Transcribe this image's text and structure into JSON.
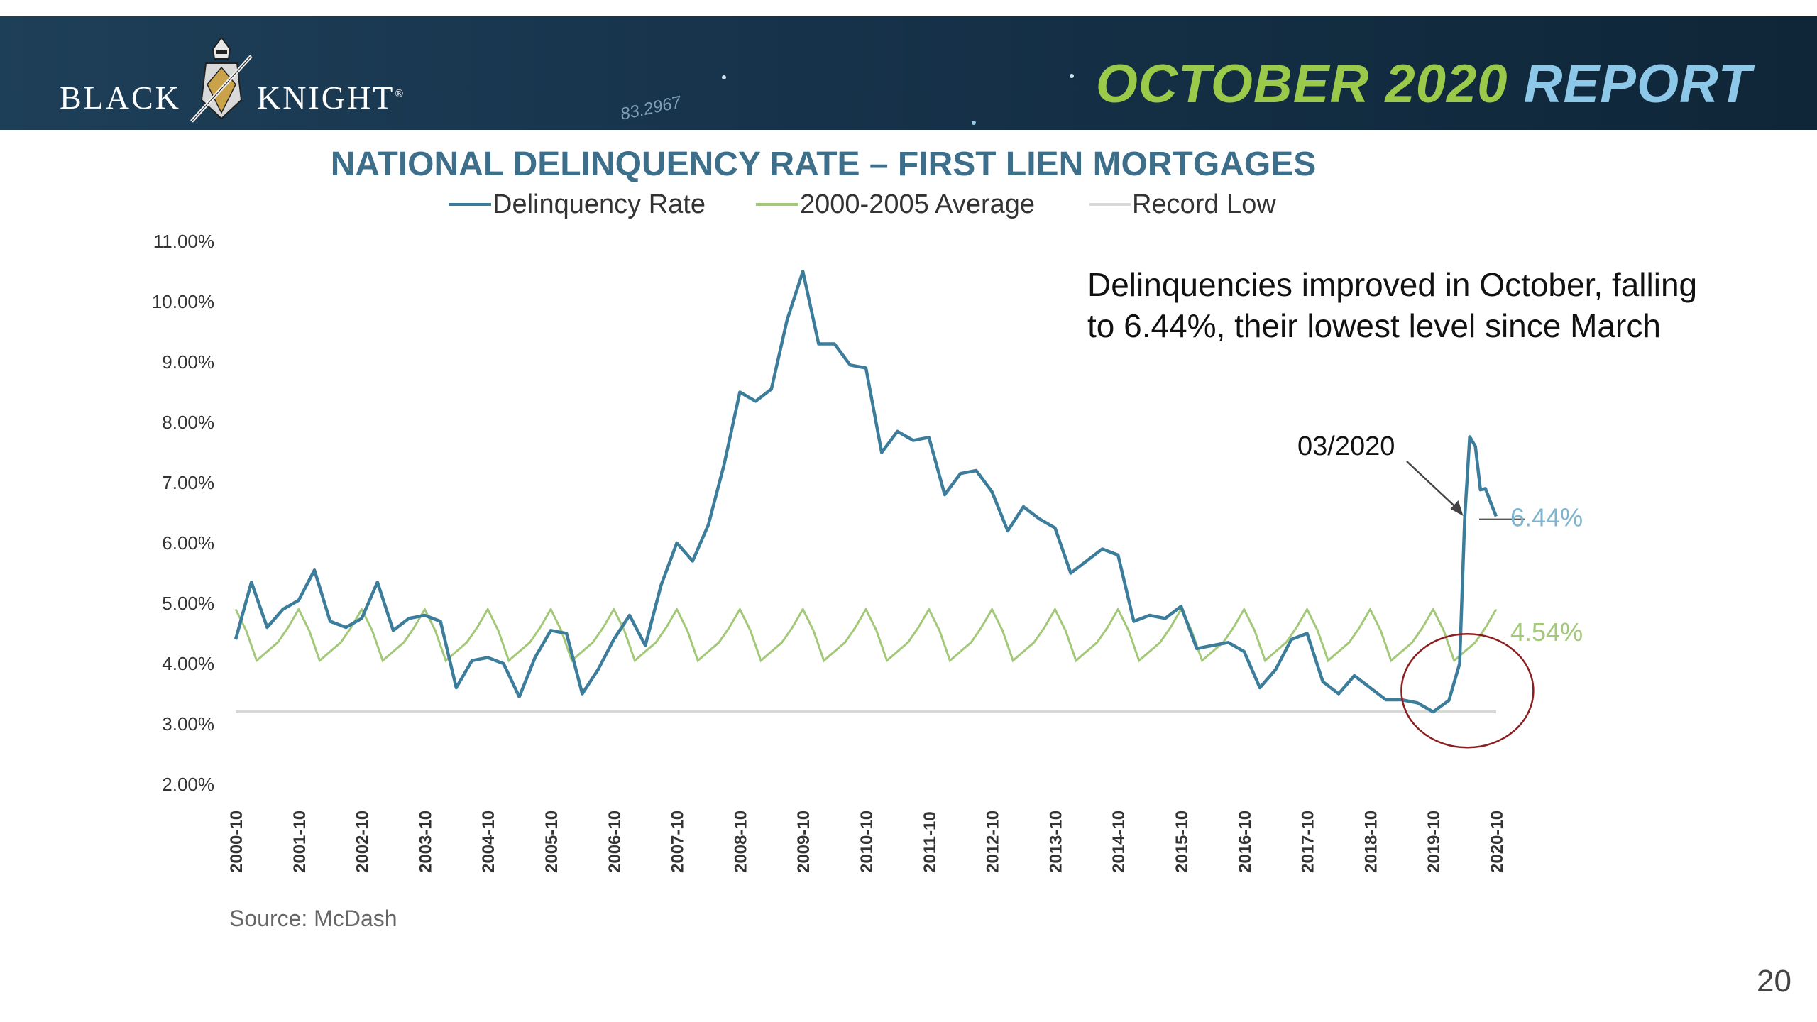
{
  "header": {
    "logo_left": "BLACK",
    "logo_right": "KNIGHT",
    "logo_trademark": "®",
    "report_month": "OCTOBER 2020",
    "report_word": "REPORT",
    "decor_number": "83.2967",
    "colors": {
      "bar": "#16324a",
      "month": "#9bc94a",
      "report": "#8ec8e8"
    }
  },
  "callout": {
    "text": "Delinquencies improved in October, falling to 6.44%, their lowest level since March"
  },
  "page_number": "20",
  "chart_data": {
    "type": "line",
    "title": "NATIONAL DELINQUENCY RATE – FIRST LIEN MORTGAGES",
    "xlabel": "",
    "ylabel": "",
    "ylim": [
      2.0,
      11.0
    ],
    "y_ticks": [
      "2.00%",
      "3.00%",
      "4.00%",
      "5.00%",
      "6.00%",
      "7.00%",
      "8.00%",
      "9.00%",
      "10.00%",
      "11.00%"
    ],
    "x_ticks": [
      "2000-10",
      "2001-10",
      "2002-10",
      "2003-10",
      "2004-10",
      "2005-10",
      "2006-10",
      "2007-10",
      "2008-10",
      "2009-10",
      "2010-10",
      "2011-10",
      "2012-10",
      "2013-10",
      "2014-10",
      "2015-10",
      "2016-10",
      "2017-10",
      "2018-10",
      "2019-10",
      "2020-10"
    ],
    "legend_position": "top",
    "grid": false,
    "source": "Source: McDash",
    "series": [
      {
        "name": "Delinquency Rate",
        "color": "#3d7d9c",
        "end_label": "6.44%",
        "points": [
          [
            2000.75,
            4.4
          ],
          [
            2001.0,
            5.35
          ],
          [
            2001.25,
            4.6
          ],
          [
            2001.5,
            4.9
          ],
          [
            2001.75,
            5.05
          ],
          [
            2002.0,
            5.55
          ],
          [
            2002.25,
            4.7
          ],
          [
            2002.5,
            4.6
          ],
          [
            2002.75,
            4.75
          ],
          [
            2003.0,
            5.35
          ],
          [
            2003.25,
            4.55
          ],
          [
            2003.5,
            4.75
          ],
          [
            2003.75,
            4.8
          ],
          [
            2004.0,
            4.7
          ],
          [
            2004.25,
            3.6
          ],
          [
            2004.5,
            4.05
          ],
          [
            2004.75,
            4.1
          ],
          [
            2005.0,
            4.0
          ],
          [
            2005.25,
            3.45
          ],
          [
            2005.5,
            4.1
          ],
          [
            2005.75,
            4.55
          ],
          [
            2006.0,
            4.5
          ],
          [
            2006.25,
            3.5
          ],
          [
            2006.5,
            3.9
          ],
          [
            2006.75,
            4.4
          ],
          [
            2007.0,
            4.8
          ],
          [
            2007.25,
            4.3
          ],
          [
            2007.5,
            5.3
          ],
          [
            2007.75,
            6.0
          ],
          [
            2008.0,
            5.7
          ],
          [
            2008.25,
            6.3
          ],
          [
            2008.5,
            7.3
          ],
          [
            2008.75,
            8.5
          ],
          [
            2009.0,
            8.35
          ],
          [
            2009.25,
            8.55
          ],
          [
            2009.5,
            9.7
          ],
          [
            2009.75,
            10.5
          ],
          [
            2010.0,
            9.3
          ],
          [
            2010.25,
            9.3
          ],
          [
            2010.5,
            8.95
          ],
          [
            2010.75,
            8.9
          ],
          [
            2011.0,
            7.5
          ],
          [
            2011.25,
            7.85
          ],
          [
            2011.5,
            7.7
          ],
          [
            2011.75,
            7.75
          ],
          [
            2012.0,
            6.8
          ],
          [
            2012.25,
            7.15
          ],
          [
            2012.5,
            7.2
          ],
          [
            2012.75,
            6.85
          ],
          [
            2013.0,
            6.2
          ],
          [
            2013.25,
            6.6
          ],
          [
            2013.5,
            6.4
          ],
          [
            2013.75,
            6.25
          ],
          [
            2014.0,
            5.5
          ],
          [
            2014.25,
            5.7
          ],
          [
            2014.5,
            5.9
          ],
          [
            2014.75,
            5.8
          ],
          [
            2015.0,
            4.7
          ],
          [
            2015.25,
            4.8
          ],
          [
            2015.5,
            4.75
          ],
          [
            2015.75,
            4.95
          ],
          [
            2016.0,
            4.25
          ],
          [
            2016.25,
            4.3
          ],
          [
            2016.5,
            4.35
          ],
          [
            2016.75,
            4.2
          ],
          [
            2017.0,
            3.6
          ],
          [
            2017.25,
            3.9
          ],
          [
            2017.5,
            4.4
          ],
          [
            2017.75,
            4.5
          ],
          [
            2018.0,
            3.7
          ],
          [
            2018.25,
            3.5
          ],
          [
            2018.5,
            3.8
          ],
          [
            2018.75,
            3.6
          ],
          [
            2019.0,
            3.4
          ],
          [
            2019.25,
            3.4
          ],
          [
            2019.5,
            3.35
          ],
          [
            2019.75,
            3.2
          ],
          [
            2020.0,
            3.39
          ],
          [
            2020.17,
            4.0
          ],
          [
            2020.25,
            6.4
          ],
          [
            2020.33,
            7.76
          ],
          [
            2020.42,
            7.6
          ],
          [
            2020.5,
            6.88
          ],
          [
            2020.58,
            6.9
          ],
          [
            2020.67,
            6.65
          ],
          [
            2020.75,
            6.44
          ]
        ]
      },
      {
        "name": "2000-2005 Average",
        "color": "#a2c878",
        "end_label": "4.54%",
        "periodic_profile": [
          4.9,
          4.55,
          4.05,
          4.2,
          4.35,
          4.6,
          4.9
        ],
        "range": [
          2000.75,
          2020.75
        ]
      },
      {
        "name": "Record Low",
        "color": "#d8d8d8",
        "value": 3.2
      }
    ],
    "annotations": [
      {
        "label": "03/2020",
        "target": [
          2020.25,
          6.4
        ]
      },
      {
        "type": "ellipse",
        "color": "#8b1e1e",
        "center": [
          2020.0,
          3.55
        ]
      }
    ]
  }
}
